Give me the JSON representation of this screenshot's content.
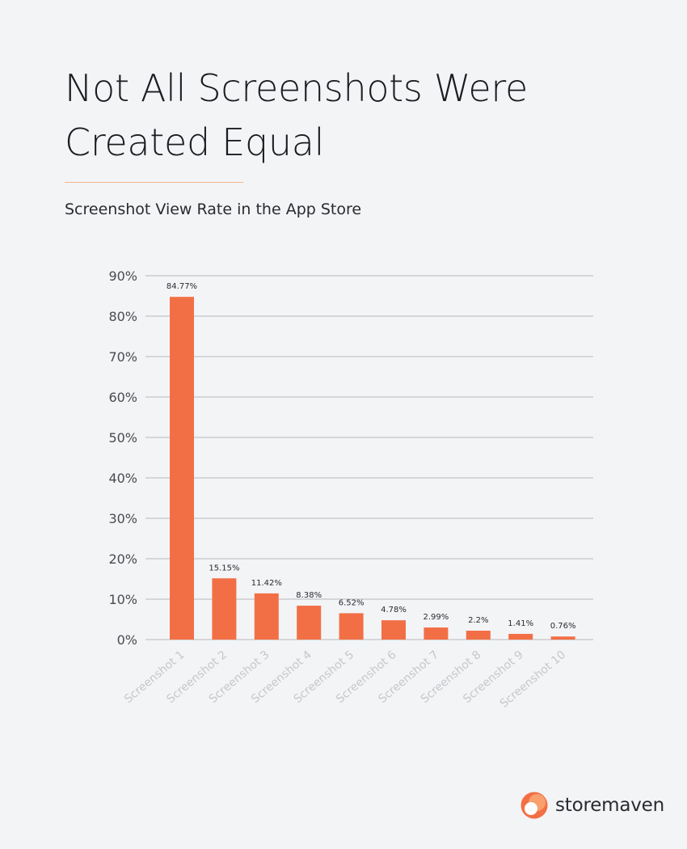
{
  "header": {
    "title_lines": [
      "Not All Screenshots Were",
      "Created Equal"
    ],
    "subtitle": "Screenshot View Rate in the App Store"
  },
  "brand": {
    "name": "storemaven"
  },
  "colors": {
    "bar": "#f26f45",
    "grid": "#b9b9bd",
    "tick_text": "#4a4a50",
    "category_text": "#c7c7cb"
  },
  "chart_data": {
    "type": "bar",
    "title": "Screenshot View Rate in the App Store",
    "categories": [
      "Screenshot 1",
      "Screenshot 2",
      "Screenshot 3",
      "Screenshot 4",
      "Screenshot 5",
      "Screenshot 6",
      "Screenshot 7",
      "Screenshot 8",
      "Screenshot 9",
      "Screenshot 10"
    ],
    "values": [
      84.77,
      15.15,
      11.42,
      8.38,
      6.52,
      4.78,
      2.99,
      2.2,
      1.41,
      0.76
    ],
    "data_labels": [
      "84.77%",
      "15.15%",
      "11.42%",
      "8.38%",
      "6.52%",
      "4.78%",
      "2.99%",
      "2.2%",
      "1.41%",
      "0.76%"
    ],
    "y_ticks": [
      0,
      10,
      20,
      30,
      40,
      50,
      60,
      70,
      80,
      90
    ],
    "y_tick_labels": [
      "0%",
      "10%",
      "20%",
      "30%",
      "40%",
      "50%",
      "60%",
      "70%",
      "80%",
      "90%"
    ],
    "xlabel": "",
    "ylabel": "",
    "ylim": [
      0,
      90
    ],
    "grid": true,
    "legend": "none"
  }
}
